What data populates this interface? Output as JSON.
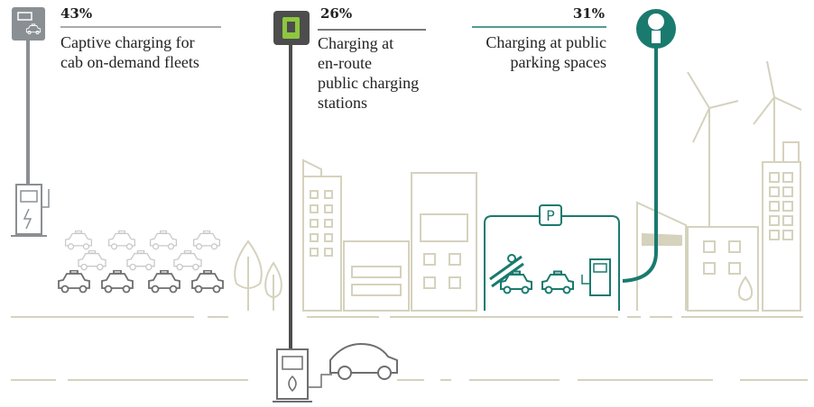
{
  "items": [
    {
      "percent": "43%",
      "label_lines": [
        "Captive charging for",
        "cab on-demand fleets"
      ]
    },
    {
      "percent": "26%",
      "label_lines": [
        "Charging at",
        "en-route",
        "public charging",
        "stations"
      ]
    },
    {
      "percent": "31%",
      "label_lines": [
        "Charging at public",
        "parking spaces"
      ]
    }
  ],
  "parking_sign": "P"
}
